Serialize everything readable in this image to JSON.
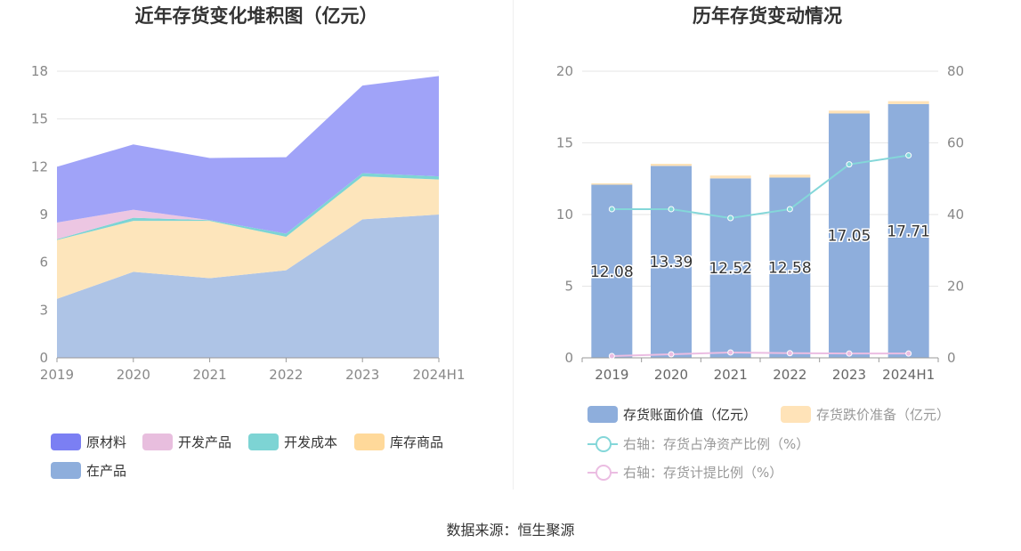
{
  "left_chart": {
    "title": "近年存货变化堆积图（亿元）",
    "legend": [
      {
        "label": "原材料",
        "color": "#7b7ff3"
      },
      {
        "label": "开发产品",
        "color": "#e8bede"
      },
      {
        "label": "开发成本",
        "color": "#7dd4d4"
      },
      {
        "label": "库存商品",
        "color": "#ffd99a"
      },
      {
        "label": "在产品",
        "color": "#8eaedc"
      }
    ]
  },
  "right_chart": {
    "title": "历年存货变动情况",
    "legend": [
      {
        "label": "存货账面价值（亿元）",
        "color": "#8eaedc"
      },
      {
        "label": "存货跌价准备（亿元）",
        "color": "#ffe3b8"
      },
      {
        "label": "右轴：存货占净资产比例（%）",
        "color": "#84d7d9"
      },
      {
        "label": "右轴：存货计提比例（%）",
        "color": "#ebbde2"
      }
    ]
  },
  "source": "数据来源：恒生聚源",
  "chart_data": [
    {
      "type": "area",
      "stacked": true,
      "title": "近年存货变化堆积图（亿元）",
      "categories": [
        "2019",
        "2020",
        "2021",
        "2022",
        "2023",
        "2024H1"
      ],
      "ylim": [
        0,
        18
      ],
      "yticks": [
        0,
        3,
        6,
        9,
        12,
        15,
        18
      ],
      "grid": true,
      "legend_position": "bottom",
      "series": [
        {
          "name": "在产品",
          "color": "#aec4e6",
          "values": [
            3.7,
            5.4,
            5.0,
            5.5,
            8.7,
            9.0
          ]
        },
        {
          "name": "库存商品",
          "color": "#fde5bb",
          "values": [
            3.7,
            3.2,
            3.6,
            2.1,
            2.7,
            2.2
          ]
        },
        {
          "name": "开发成本",
          "color": "#7dd4d4",
          "values": [
            0.05,
            0.2,
            0.05,
            0.2,
            0.2,
            0.2
          ]
        },
        {
          "name": "开发产品",
          "color": "#ecc6e2",
          "values": [
            1.05,
            0.5,
            0.0,
            0.0,
            0.0,
            0.0
          ]
        },
        {
          "name": "原材料",
          "color": "#a0a3f8",
          "values": [
            3.5,
            4.1,
            3.9,
            4.8,
            5.5,
            6.3
          ]
        }
      ]
    },
    {
      "type": "bar",
      "stacked": true,
      "title": "历年存货变动情况",
      "categories": [
        "2019",
        "2020",
        "2021",
        "2022",
        "2023",
        "2024H1"
      ],
      "ylim": [
        0,
        20
      ],
      "yticks": [
        0,
        5,
        10,
        15,
        20
      ],
      "y2lim": [
        0,
        80
      ],
      "y2ticks": [
        0,
        20,
        40,
        60,
        80
      ],
      "grid": true,
      "legend_position": "bottom",
      "series": [
        {
          "name": "存货账面价值（亿元）",
          "type": "bar",
          "color": "#8eaedc",
          "values": [
            12.08,
            13.39,
            12.52,
            12.58,
            17.05,
            17.71
          ],
          "labels": [
            "12.08",
            "13.39",
            "12.52",
            "12.58",
            "17.05",
            "17.71"
          ]
        },
        {
          "name": "存货跌价准备（亿元）",
          "type": "bar",
          "color": "#ffe3b8",
          "values": [
            0.1,
            0.15,
            0.2,
            0.2,
            0.2,
            0.2
          ]
        },
        {
          "name": "右轴：存货占净资产比例（%）",
          "type": "line",
          "axis": "right",
          "color": "#84d7d9",
          "values": [
            41.5,
            41.5,
            39.0,
            41.5,
            54.0,
            56.5
          ]
        },
        {
          "name": "右轴：存货计提比例（%）",
          "type": "line",
          "axis": "right",
          "color": "#ebbde2",
          "values": [
            0.5,
            1.0,
            1.5,
            1.3,
            1.2,
            1.2
          ]
        }
      ]
    }
  ]
}
